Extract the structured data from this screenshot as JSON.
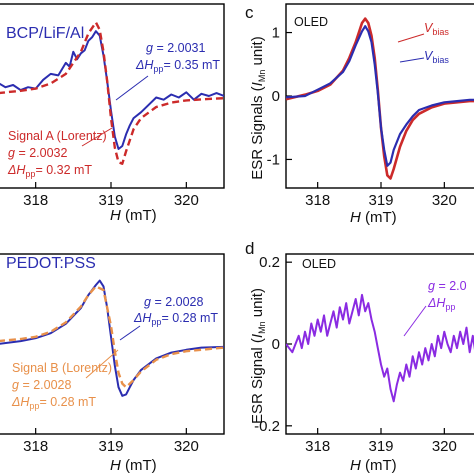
{
  "chart_data": [
    {
      "id": "a",
      "type": "line",
      "panel_label": "",
      "sample_label": "BCP/LiF/Al",
      "xlabel_base": "H",
      "xlabel_unit": "(mT)",
      "xlim": [
        317.5,
        320.5
      ],
      "ylim": [
        -1.25,
        1.25
      ],
      "xticks": [
        318,
        319,
        320
      ],
      "yticks": [],
      "colors": {
        "exp": "#2b2db0",
        "fit": "#cc2a2a"
      },
      "annotation_exp": {
        "g_label": "g",
        "g_value": "= 2.0031",
        "dH_label": "ΔH",
        "dH_sub": "pp",
        "dH_value": "= 0.35 mT",
        "color": "#2b2db0"
      },
      "annotation_fit": {
        "title": "Signal A (Lorentz)",
        "g_label": "g",
        "g_value": "= 2.0032",
        "dH_label": "ΔH",
        "dH_sub": "pp",
        "dH_value": "= 0.32 mT",
        "color": "#cc2a2a"
      },
      "series": [
        {
          "kind": "experimental",
          "x": [
            317.5,
            317.6,
            317.7,
            317.8,
            317.9,
            318.0,
            318.1,
            318.2,
            318.3,
            318.4,
            318.45,
            318.5,
            318.55,
            318.6,
            318.65,
            318.7,
            318.75,
            318.8,
            318.85,
            318.9,
            318.95,
            319.0,
            319.05,
            319.1,
            319.15,
            319.2,
            319.25,
            319.3,
            319.4,
            319.5,
            319.6,
            319.7,
            319.8,
            319.9,
            320.0,
            320.1,
            320.2,
            320.3,
            320.4,
            320.5
          ],
          "y": [
            0.18,
            0.12,
            0.15,
            0.08,
            0.12,
            0.1,
            0.22,
            0.3,
            0.28,
            0.45,
            0.4,
            0.6,
            0.5,
            0.58,
            0.62,
            0.75,
            0.8,
            0.88,
            0.82,
            0.55,
            0.2,
            -0.2,
            -0.55,
            -0.72,
            -0.68,
            -0.52,
            -0.4,
            -0.3,
            -0.22,
            -0.12,
            -0.02,
            -0.05,
            0.02,
            -0.02,
            0.05,
            -0.05,
            0.03,
            0.0,
            0.04,
            0.0
          ]
        },
        {
          "kind": "fit",
          "x": [
            317.5,
            317.8,
            318.0,
            318.2,
            318.4,
            318.6,
            318.7,
            318.8,
            318.85,
            318.9,
            318.95,
            319.0,
            319.05,
            319.1,
            319.15,
            319.2,
            319.3,
            319.4,
            319.6,
            319.8,
            320.0,
            320.3,
            320.5
          ],
          "y": [
            0.04,
            0.07,
            0.1,
            0.17,
            0.3,
            0.6,
            0.85,
            1.0,
            0.9,
            0.6,
            0.2,
            -0.3,
            -0.7,
            -0.9,
            -0.92,
            -0.75,
            -0.45,
            -0.3,
            -0.15,
            -0.09,
            -0.06,
            -0.04,
            -0.03
          ]
        }
      ]
    },
    {
      "id": "c",
      "type": "line",
      "panel_label": "c",
      "sample_label": "OLED",
      "ylabel_base": "ESR Signals (",
      "ylabel_i": "I",
      "ylabel_sub": "Mn",
      "ylabel_tail": " unit)",
      "xlabel_base": "H",
      "xlabel_unit": "(mT)",
      "xlim": [
        317.5,
        320.5
      ],
      "ylim": [
        -1.45,
        1.45
      ],
      "xticks": [
        318,
        319,
        320
      ],
      "yticks": [
        1,
        0,
        -1
      ],
      "colors": {
        "on": "#cc2a2a",
        "off": "#2b2db0"
      },
      "legend": [
        {
          "label": "V",
          "sub": "bias",
          "color": "#cc2a2a"
        },
        {
          "label": "V",
          "sub": "bias",
          "color": "#2b2db0"
        }
      ],
      "series": [
        {
          "kind": "bias-red",
          "x": [
            317.5,
            317.8,
            318.0,
            318.2,
            318.4,
            318.5,
            318.6,
            318.7,
            318.75,
            318.8,
            318.85,
            318.9,
            318.95,
            319.0,
            319.05,
            319.1,
            319.15,
            319.2,
            319.3,
            319.4,
            319.5,
            319.6,
            319.8,
            320.0,
            320.2,
            320.4,
            320.5
          ],
          "y": [
            -0.05,
            0.02,
            0.08,
            0.18,
            0.4,
            0.6,
            0.85,
            1.15,
            1.22,
            1.15,
            0.95,
            0.6,
            0.1,
            -0.5,
            -0.95,
            -1.25,
            -1.3,
            -1.15,
            -0.8,
            -0.55,
            -0.38,
            -0.28,
            -0.18,
            -0.12,
            -0.1,
            -0.08,
            -0.08
          ]
        },
        {
          "kind": "bias-blue",
          "x": [
            317.5,
            317.8,
            318.0,
            318.2,
            318.4,
            318.5,
            318.6,
            318.7,
            318.75,
            318.8,
            318.85,
            318.9,
            318.95,
            319.0,
            319.05,
            319.1,
            319.15,
            319.2,
            319.3,
            319.4,
            319.5,
            319.6,
            319.8,
            320.0,
            320.2,
            320.4,
            320.5
          ],
          "y": [
            -0.02,
            0.0,
            0.1,
            0.2,
            0.38,
            0.55,
            0.8,
            1.02,
            1.1,
            1.02,
            0.85,
            0.5,
            0.05,
            -0.5,
            -0.85,
            -1.1,
            -1.05,
            -0.85,
            -0.6,
            -0.45,
            -0.32,
            -0.22,
            -0.15,
            -0.1,
            -0.08,
            -0.06,
            -0.06
          ]
        }
      ]
    },
    {
      "id": "b",
      "type": "line",
      "panel_label": "",
      "sample_label": "PEDOT:PSS",
      "xlabel_base": "H",
      "xlabel_unit": "(mT)",
      "xlim": [
        317.5,
        320.5
      ],
      "ylim": [
        -1.25,
        1.25
      ],
      "xticks": [
        318,
        319,
        320
      ],
      "yticks": [],
      "colors": {
        "exp": "#2b2db0",
        "fit": "#e8904a"
      },
      "annotation_exp": {
        "g_label": "g",
        "g_value": "= 2.0028",
        "dH_label": "ΔH",
        "dH_sub": "pp",
        "dH_value": "= 0.28 mT",
        "color": "#2b2db0"
      },
      "annotation_fit": {
        "title": "Signal B (Lorentz)",
        "g_label": "g",
        "g_value": "= 2.0028",
        "dH_label": "ΔH",
        "dH_sub": "pp",
        "dH_value": "= 0.28 mT",
        "color": "#e8904a"
      },
      "series": [
        {
          "kind": "experimental",
          "x": [
            317.5,
            317.8,
            318.0,
            318.2,
            318.4,
            318.6,
            318.7,
            318.8,
            318.85,
            318.9,
            318.95,
            319.0,
            319.05,
            319.1,
            319.15,
            319.2,
            319.25,
            319.3,
            319.4,
            319.6,
            319.8,
            320.0,
            320.2,
            320.5
          ],
          "y": [
            0.0,
            0.04,
            0.08,
            0.15,
            0.28,
            0.5,
            0.68,
            0.82,
            0.88,
            0.8,
            0.5,
            0.1,
            -0.3,
            -0.6,
            -0.72,
            -0.7,
            -0.6,
            -0.5,
            -0.36,
            -0.2,
            -0.12,
            -0.08,
            -0.05,
            -0.04
          ]
        },
        {
          "kind": "fit",
          "x": [
            317.5,
            317.8,
            318.0,
            318.2,
            318.4,
            318.6,
            318.7,
            318.8,
            318.9,
            319.0,
            319.05,
            319.1,
            319.15,
            319.2,
            319.3,
            319.4,
            319.6,
            319.8,
            320.0,
            320.3,
            320.5
          ],
          "y": [
            0.04,
            0.07,
            0.1,
            0.17,
            0.3,
            0.52,
            0.68,
            0.8,
            0.75,
            0.25,
            -0.1,
            -0.4,
            -0.55,
            -0.6,
            -0.5,
            -0.38,
            -0.22,
            -0.14,
            -0.1,
            -0.07,
            -0.05
          ]
        }
      ]
    },
    {
      "id": "d",
      "type": "line",
      "panel_label": "d",
      "sample_label": "OLED",
      "ylabel_base": "ESR Signal (",
      "ylabel_i": "I",
      "ylabel_sub": "Mn",
      "ylabel_tail": " unit)",
      "xlabel_base": "H",
      "xlabel_unit": "(mT)",
      "xlim": [
        317.5,
        320.5
      ],
      "ylim": [
        -0.22,
        0.22
      ],
      "xticks": [
        318,
        319,
        320
      ],
      "yticks": [
        0.2,
        0,
        -0.2
      ],
      "colors": {
        "signal": "#8a2be2"
      },
      "annotation": {
        "g_label": "g",
        "g_value": "= 2.0",
        "dH_label": "ΔH",
        "dH_sub": "pp",
        "color": "#8a2be2"
      },
      "series": [
        {
          "kind": "signal",
          "x": [
            317.5,
            317.6,
            317.7,
            317.75,
            317.8,
            317.85,
            317.9,
            317.95,
            318.0,
            318.05,
            318.1,
            318.15,
            318.2,
            318.25,
            318.3,
            318.35,
            318.4,
            318.45,
            318.5,
            318.55,
            318.6,
            318.65,
            318.7,
            318.75,
            318.8,
            318.85,
            318.9,
            318.95,
            319.0,
            319.05,
            319.1,
            319.15,
            319.2,
            319.25,
            319.3,
            319.35,
            319.4,
            319.45,
            319.5,
            319.55,
            319.6,
            319.65,
            319.7,
            319.75,
            319.8,
            319.85,
            319.9,
            319.95,
            320.0,
            320.05,
            320.1,
            320.15,
            320.2,
            320.25,
            320.3,
            320.35,
            320.4,
            320.45,
            320.5
          ],
          "y": [
            0.0,
            -0.02,
            0.02,
            -0.01,
            0.03,
            0.0,
            0.05,
            0.02,
            0.06,
            0.03,
            0.07,
            0.02,
            0.05,
            0.08,
            0.04,
            0.09,
            0.06,
            0.1,
            0.05,
            0.08,
            0.11,
            0.07,
            0.12,
            0.08,
            0.1,
            0.06,
            0.03,
            -0.01,
            -0.05,
            -0.08,
            -0.06,
            -0.11,
            -0.14,
            -0.1,
            -0.07,
            -0.09,
            -0.05,
            -0.08,
            -0.03,
            -0.06,
            -0.02,
            -0.05,
            -0.01,
            -0.04,
            0.0,
            -0.03,
            0.02,
            -0.01,
            0.03,
            0.0,
            -0.02,
            0.02,
            -0.01,
            0.03,
            0.0,
            0.04,
            -0.02,
            0.02,
            -0.03
          ]
        }
      ]
    }
  ]
}
